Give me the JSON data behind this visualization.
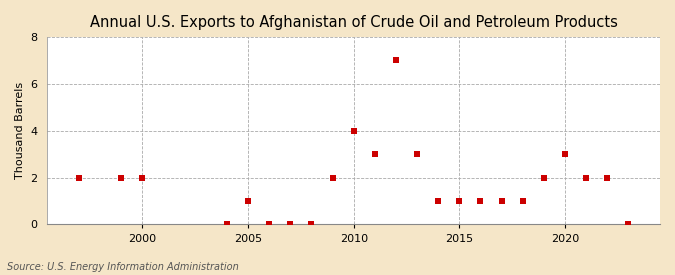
{
  "title": "Annual U.S. Exports to Afghanistan of Crude Oil and Petroleum Products",
  "ylabel": "Thousand Barrels",
  "source": "Source: U.S. Energy Information Administration",
  "background_color": "#f5e6c8",
  "plot_bg_color": "#ffffff",
  "years": [
    1997,
    1999,
    2000,
    2004,
    2005,
    2006,
    2007,
    2008,
    2009,
    2010,
    2011,
    2012,
    2013,
    2014,
    2015,
    2016,
    2017,
    2018,
    2019,
    2020,
    2021,
    2022,
    2023
  ],
  "values": [
    2,
    2,
    2,
    0,
    1,
    0,
    0,
    0,
    2,
    4,
    3,
    7,
    3,
    1,
    1,
    1,
    1,
    1,
    2,
    3,
    2,
    2,
    0
  ],
  "marker_color": "#cc0000",
  "marker_size": 4,
  "ylim": [
    0,
    8
  ],
  "yticks": [
    0,
    2,
    4,
    6,
    8
  ],
  "xlim": [
    1995.5,
    2024.5
  ],
  "xticks": [
    2000,
    2005,
    2010,
    2015,
    2020
  ],
  "grid_color": "#aaaaaa",
  "title_fontsize": 10.5,
  "label_fontsize": 8,
  "tick_fontsize": 8,
  "source_fontsize": 7
}
